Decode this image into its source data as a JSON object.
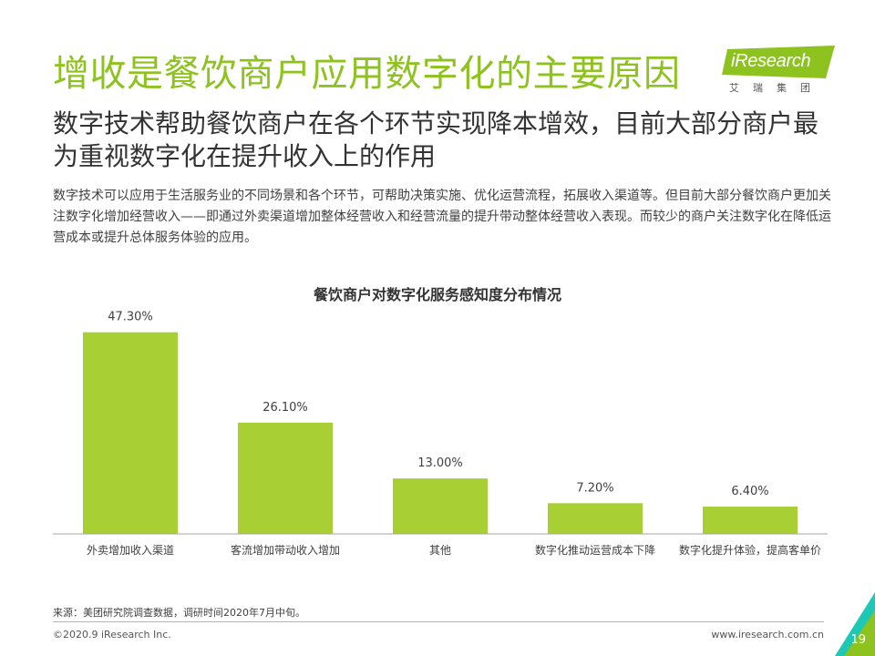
{
  "page": {
    "title": "增收是餐饮商户应用数字化的主要原因",
    "subtitle": "数字技术帮助餐饮商户在各个环节实现降本增效，目前大部分商户最为重视数字化在提升收入上的作用",
    "body": "数字技术可以应用于生活服务业的不同场景和各个环节，可帮助决策实施、优化运营流程，拓展收入渠道等。但目前大部分餐饮商户更加关注数字化增加经营收入——即通过外卖渠道增加整体经营收入和经营流量的提升带动整体经营收入表现。而较少的商户关注数字化在降低运营成本或提升总体服务体验的应用。",
    "source": "来源：美团研究院调查数据，调研时间2020年7月中旬。",
    "copyright": "©2020.9 iResearch Inc.",
    "website": "www.iresearch.com.cn",
    "page_number": "19"
  },
  "logo": {
    "text": "iResearch",
    "subtext": "艾瑞集团"
  },
  "colors": {
    "accent": "#8dc21f",
    "bar": "#a8cf34",
    "axis": "#a6a6a6",
    "corner": "#1ec8b4"
  },
  "chart_data": {
    "type": "bar",
    "title": "餐饮商户对数字化服务感知度分布情况",
    "categories": [
      "外卖增加收入渠道",
      "客流增加带动收入增加",
      "其他",
      "数字化推动运营成本下降",
      "数字化提升体验，提高客单价"
    ],
    "values": [
      47.3,
      26.1,
      13.0,
      7.2,
      6.4
    ],
    "value_labels": [
      "47.30%",
      "26.10%",
      "13.00%",
      "7.20%",
      "6.40%"
    ],
    "xlabel": "",
    "ylabel": "",
    "ylim": [
      0,
      50
    ],
    "grid": false,
    "legend": "none"
  }
}
